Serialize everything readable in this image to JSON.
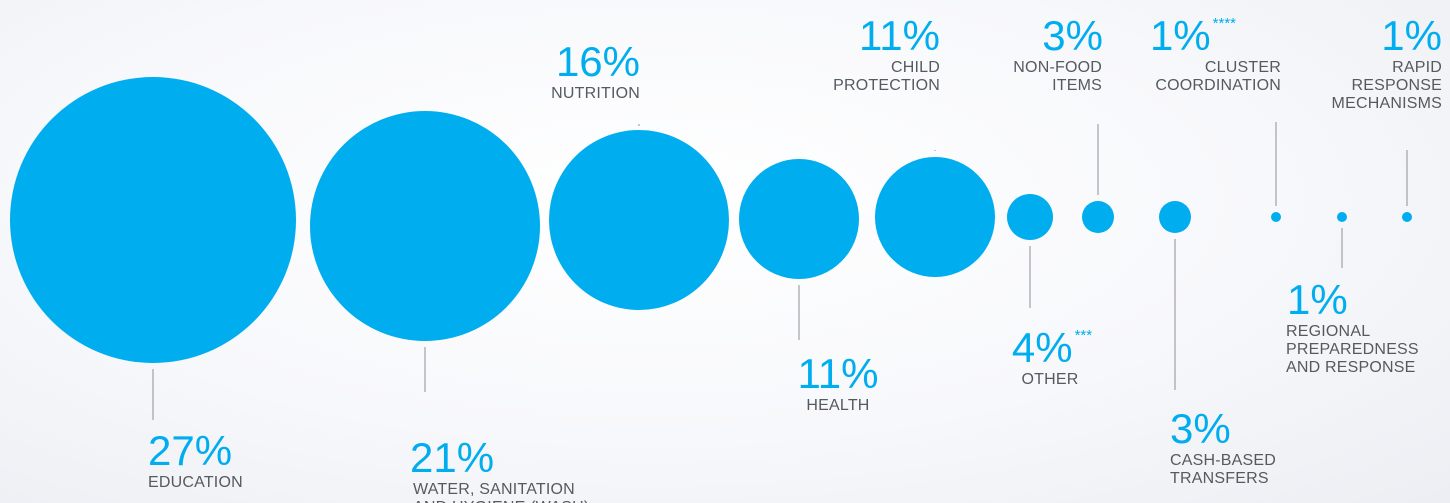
{
  "chart_data": {
    "type": "bubble",
    "colors": {
      "bubble": "#00adee",
      "percent_text": "#00adee",
      "label_text": "#555a60",
      "leader_line": "#8c9096"
    },
    "items": [
      {
        "category": "EDUCATION",
        "value": 27,
        "percent_label": "27%",
        "marker": "",
        "label_lines": [
          "EDUCATION"
        ]
      },
      {
        "category": "WATER, SANITATION AND HYGIENE (WASH)",
        "value": 21,
        "percent_label": "21%",
        "marker": "",
        "label_lines": [
          "WATER, SANITATION",
          "AND HYGIENE (WASH)"
        ]
      },
      {
        "category": "NUTRITION",
        "value": 16,
        "percent_label": "16%",
        "marker": "",
        "label_lines": [
          "NUTRITION"
        ]
      },
      {
        "category": "HEALTH",
        "value": 11,
        "percent_label": "11%",
        "marker": "",
        "label_lines": [
          "HEALTH"
        ]
      },
      {
        "category": "CHILD PROTECTION",
        "value": 11,
        "percent_label": "11%",
        "marker": "",
        "label_lines": [
          "CHILD",
          "PROTECTION"
        ]
      },
      {
        "category": "OTHER",
        "value": 4,
        "percent_label": "4%",
        "marker": "***",
        "label_lines": [
          "OTHER"
        ]
      },
      {
        "category": "NON-FOOD ITEMS",
        "value": 3,
        "percent_label": "3%",
        "marker": "",
        "label_lines": [
          "NON-FOOD",
          "ITEMS"
        ]
      },
      {
        "category": "CASH-BASED TRANSFERS",
        "value": 3,
        "percent_label": "3%",
        "marker": "",
        "label_lines": [
          "CASH-BASED",
          "TRANSFERS"
        ]
      },
      {
        "category": "CLUSTER COORDINATION",
        "value": 1,
        "percent_label": "1%",
        "marker": "****",
        "label_lines": [
          "CLUSTER",
          "COORDINATION"
        ]
      },
      {
        "category": "REGIONAL PREPAREDNESS AND RESPONSE",
        "value": 1,
        "percent_label": "1%",
        "marker": "",
        "label_lines": [
          "REGIONAL",
          "PREPAREDNESS",
          "AND RESPONSE"
        ]
      },
      {
        "category": "RAPID RESPONSE MECHANISMS",
        "value": 1,
        "percent_label": "1%",
        "marker": "",
        "label_lines": [
          "RAPID",
          "RESPONSE",
          "MECHANISMS"
        ]
      }
    ]
  }
}
